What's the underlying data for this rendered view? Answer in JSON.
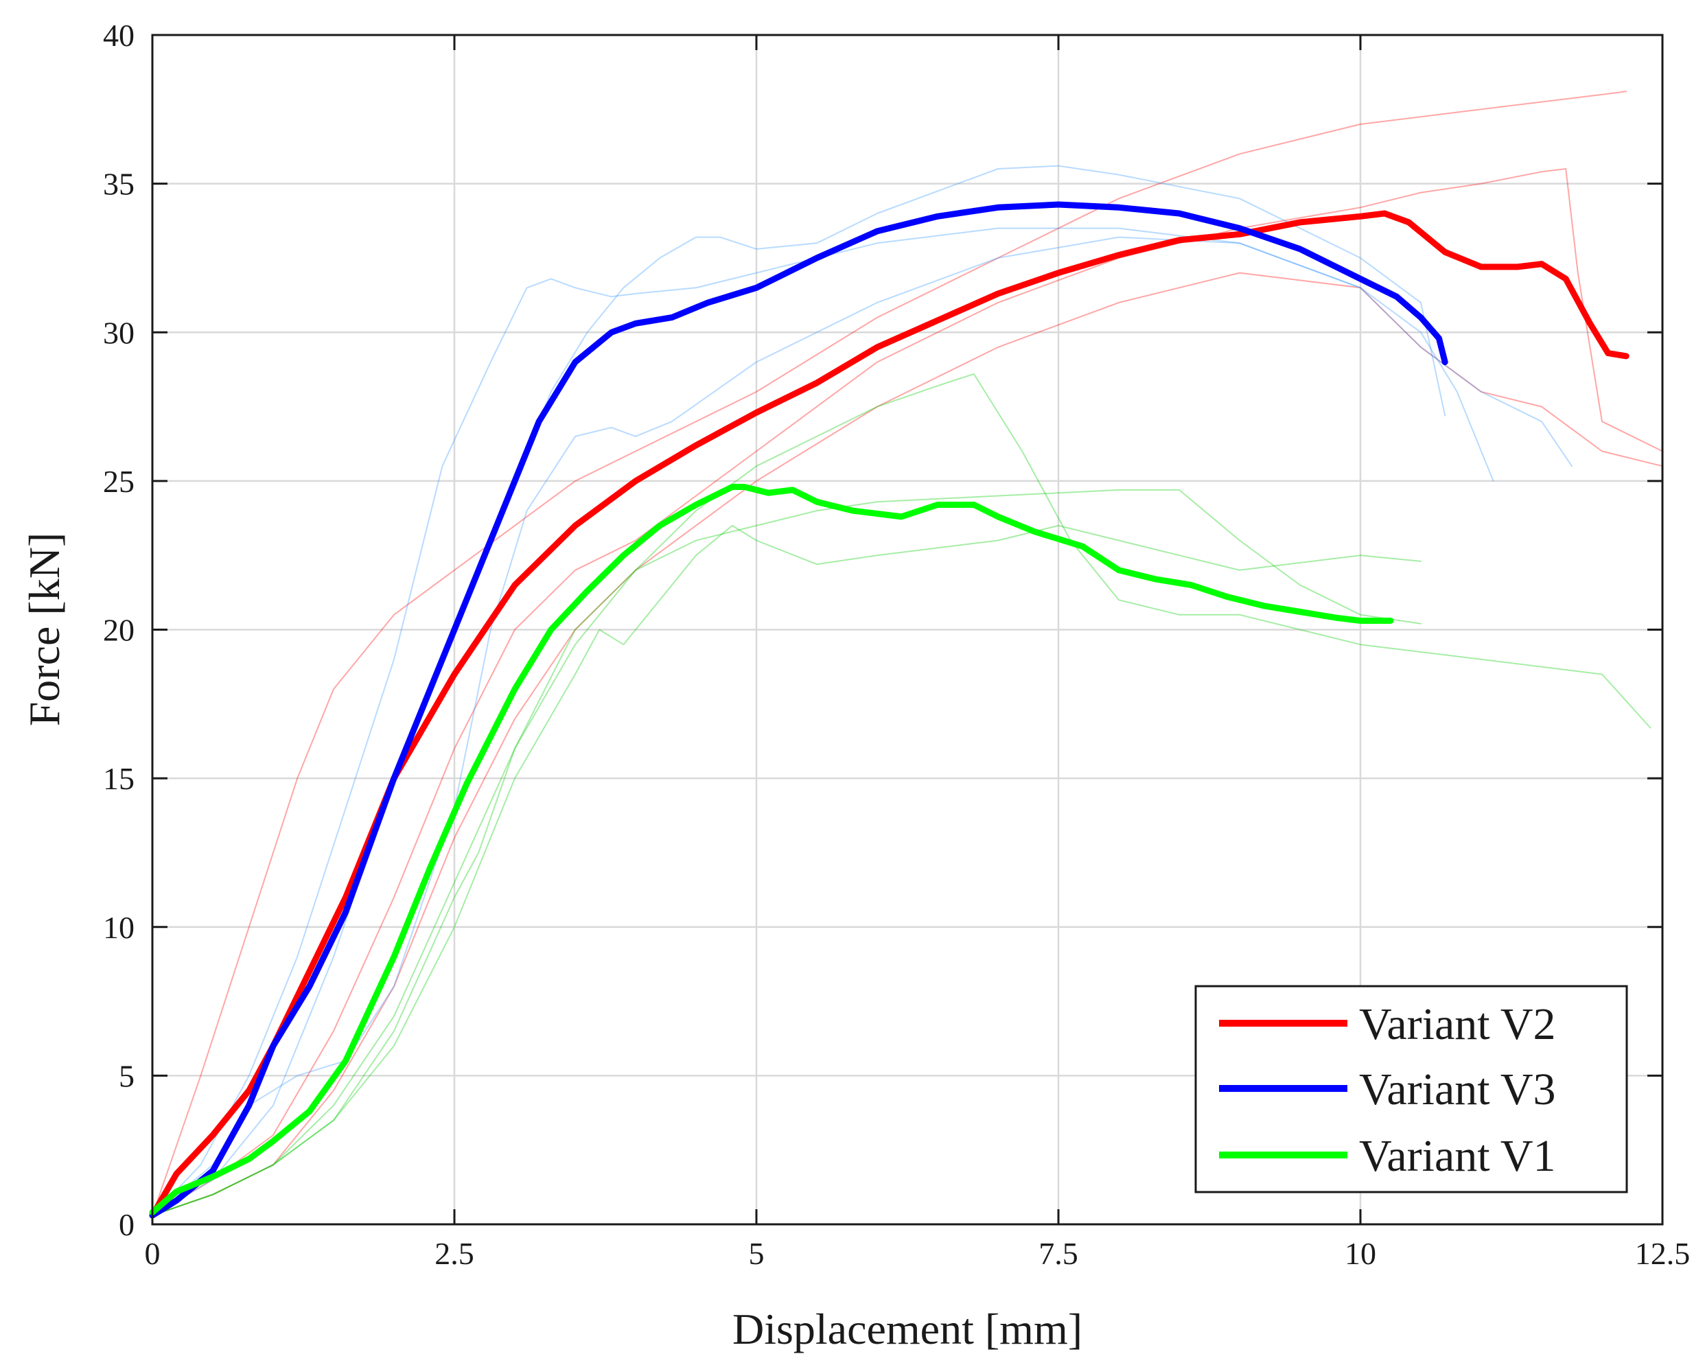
{
  "chart_data": {
    "type": "line",
    "title": "",
    "xlabel": "Displacement [mm]",
    "ylabel": "Force [kN]",
    "xlim": [
      0,
      12.5
    ],
    "ylim": [
      0,
      40
    ],
    "grid": true,
    "legend_position": "bottom-right",
    "x_ticks": [
      0,
      2.5,
      5,
      7.5,
      10,
      12.5
    ],
    "x_tick_labels": [
      "0",
      "2.5",
      "5",
      "7.5",
      "10",
      "12.5"
    ],
    "y_ticks": [
      0,
      5,
      10,
      15,
      20,
      25,
      30,
      35,
      40
    ],
    "y_tick_labels": [
      "0",
      "5",
      "10",
      "15",
      "20",
      "25",
      "30",
      "35",
      "40"
    ],
    "legend": [
      {
        "name": "Variant V2",
        "color": "#ff0000"
      },
      {
        "name": "Variant V3",
        "color": "#0000ff"
      },
      {
        "name": "Variant V1",
        "color": "#00ff00"
      }
    ],
    "series": [
      {
        "name": "Variant V2",
        "color": "#ff0000",
        "role": "mean",
        "x": [
          0,
          0.2,
          0.5,
          0.8,
          1.0,
          1.3,
          1.6,
          2.0,
          2.5,
          3.0,
          3.5,
          4.0,
          4.5,
          5.0,
          5.5,
          6.0,
          6.5,
          7.0,
          7.5,
          8.0,
          8.5,
          9.0,
          9.5,
          10.0,
          10.2,
          10.4,
          10.7,
          11.0,
          11.3,
          11.5,
          11.7,
          11.9,
          12.05,
          12.2
        ],
        "y": [
          0.3,
          1.7,
          3.0,
          4.5,
          6.0,
          8.5,
          11.0,
          15.0,
          18.5,
          21.5,
          23.5,
          25.0,
          26.2,
          27.3,
          28.3,
          29.5,
          30.4,
          31.3,
          32.0,
          32.6,
          33.1,
          33.3,
          33.7,
          33.9,
          34.0,
          33.7,
          32.7,
          32.2,
          32.2,
          32.3,
          31.8,
          30.3,
          29.3,
          29.2
        ]
      },
      {
        "name": "Variant V3",
        "color": "#0000ff",
        "role": "mean",
        "x": [
          0,
          0.2,
          0.5,
          0.8,
          1.0,
          1.3,
          1.6,
          2.0,
          2.5,
          2.9,
          3.2,
          3.5,
          3.8,
          4.0,
          4.3,
          4.6,
          5.0,
          5.5,
          6.0,
          6.5,
          7.0,
          7.5,
          8.0,
          8.5,
          9.0,
          9.5,
          10.0,
          10.3,
          10.5,
          10.65,
          10.7
        ],
        "y": [
          0.3,
          0.8,
          1.8,
          4.0,
          6.0,
          8.0,
          10.5,
          15.0,
          20.0,
          24.0,
          27.0,
          29.0,
          30.0,
          30.3,
          30.5,
          31.0,
          31.5,
          32.5,
          33.4,
          33.9,
          34.2,
          34.3,
          34.2,
          34.0,
          33.5,
          32.8,
          31.8,
          31.2,
          30.5,
          29.8,
          29.0
        ]
      },
      {
        "name": "Variant V1",
        "color": "#00ff00",
        "role": "mean",
        "x": [
          0,
          0.2,
          0.5,
          0.8,
          1.0,
          1.3,
          1.6,
          2.0,
          2.3,
          2.6,
          3.0,
          3.3,
          3.6,
          3.9,
          4.2,
          4.5,
          4.8,
          4.9,
          5.1,
          5.3,
          5.5,
          5.8,
          6.0,
          6.2,
          6.5,
          6.8,
          7.0,
          7.3,
          7.7,
          8.0,
          8.3,
          8.6,
          8.9,
          9.2,
          9.5,
          9.8,
          10.0,
          10.25
        ],
        "y": [
          0.4,
          1.1,
          1.6,
          2.2,
          2.8,
          3.8,
          5.5,
          9.0,
          12.0,
          14.8,
          18.0,
          20.0,
          21.3,
          22.5,
          23.5,
          24.2,
          24.8,
          24.8,
          24.6,
          24.7,
          24.3,
          24.0,
          23.9,
          23.8,
          24.2,
          24.2,
          23.8,
          23.3,
          22.8,
          22.0,
          21.7,
          21.5,
          21.1,
          20.8,
          20.6,
          20.4,
          20.3,
          20.3
        ]
      },
      {
        "name": "V2 specimen 1",
        "color": "#ff0000",
        "role": "specimen",
        "x": [
          0,
          0.4,
          0.8,
          1.2,
          1.5,
          2.0,
          2.5,
          3.0,
          3.5,
          4.0,
          5.0,
          6.0,
          7.0,
          8.0,
          9.0,
          10.0,
          11.0,
          12.0,
          12.2
        ],
        "y": [
          0.3,
          5.0,
          10.0,
          15.0,
          18.0,
          20.5,
          22.0,
          23.5,
          25.0,
          26.0,
          28.0,
          30.5,
          32.5,
          34.5,
          36.0,
          37.0,
          37.5,
          38.0,
          38.1
        ]
      },
      {
        "name": "V2 specimen 2",
        "color": "#ff0000",
        "role": "specimen",
        "x": [
          0,
          0.5,
          1.0,
          1.5,
          2.0,
          2.5,
          3.0,
          3.5,
          4.0,
          4.5,
          5.0,
          6.0,
          7.0,
          8.0,
          9.0,
          10.0,
          10.5,
          11.0,
          11.5,
          11.7,
          11.8,
          12.0,
          12.5
        ],
        "y": [
          0.3,
          1.5,
          3.0,
          6.5,
          11.0,
          16.0,
          20.0,
          22.0,
          23.0,
          24.5,
          26.0,
          29.0,
          31.0,
          32.5,
          33.5,
          34.2,
          34.7,
          35.0,
          35.4,
          35.5,
          32.0,
          27.0,
          26.0
        ]
      },
      {
        "name": "V2 specimen 3",
        "color": "#ff0000",
        "role": "specimen",
        "x": [
          0,
          0.5,
          1.0,
          1.5,
          2.0,
          2.5,
          3.0,
          3.5,
          4.0,
          5.0,
          6.0,
          7.0,
          8.0,
          9.0,
          10.0,
          10.5,
          11.0,
          11.5,
          12.0,
          12.5
        ],
        "y": [
          0.3,
          1.0,
          2.0,
          4.5,
          8.0,
          13.0,
          17.0,
          20.0,
          22.0,
          25.0,
          27.5,
          29.5,
          31.0,
          32.0,
          31.5,
          29.5,
          28.0,
          27.5,
          26.0,
          25.5
        ]
      },
      {
        "name": "V3 specimen 1",
        "color": "#3399ff",
        "role": "specimen",
        "x": [
          0,
          0.4,
          0.8,
          1.2,
          1.6,
          2.0,
          2.4,
          2.8,
          3.1,
          3.3,
          3.5,
          3.8,
          4.0,
          4.5,
          5.0,
          6.0,
          7.0,
          8.0,
          9.0,
          10.0,
          10.5,
          10.8,
          11.1
        ],
        "y": [
          0.3,
          2.0,
          5.0,
          9.0,
          14.0,
          19.0,
          25.5,
          29.0,
          31.5,
          31.8,
          31.5,
          31.2,
          31.3,
          31.5,
          32.0,
          33.0,
          33.5,
          33.5,
          33.0,
          31.5,
          30.0,
          28.0,
          25.0
        ]
      },
      {
        "name": "V3 specimen 2",
        "color": "#3399ff",
        "role": "specimen",
        "x": [
          0,
          0.5,
          1.0,
          1.5,
          2.0,
          2.5,
          3.0,
          3.3,
          3.6,
          3.9,
          4.2,
          4.5,
          4.7,
          5.0,
          5.5,
          6.0,
          7.0,
          7.5,
          8.0,
          9.0,
          10.0,
          10.5,
          10.7
        ],
        "y": [
          0.3,
          1.5,
          4.0,
          9.0,
          15.0,
          20.0,
          25.0,
          28.0,
          30.0,
          31.5,
          32.5,
          33.2,
          33.2,
          32.8,
          33.0,
          34.0,
          35.5,
          35.6,
          35.3,
          34.5,
          32.5,
          31.0,
          27.2
        ]
      },
      {
        "name": "V3 specimen 3",
        "color": "#3399ff",
        "role": "specimen",
        "x": [
          0,
          0.5,
          0.8,
          1.2,
          1.6,
          2.0,
          2.5,
          2.8,
          3.1,
          3.5,
          3.8,
          4.0,
          4.3,
          5.0,
          6.0,
          7.0,
          8.0,
          9.0,
          10.0,
          10.5,
          11.0,
          11.5,
          11.75
        ],
        "y": [
          0.3,
          2.0,
          4.0,
          5.0,
          5.5,
          8.0,
          14.0,
          20.0,
          24.0,
          26.5,
          26.8,
          26.5,
          27.0,
          29.0,
          31.0,
          32.5,
          33.2,
          33.0,
          31.5,
          29.5,
          28.0,
          27.0,
          25.5
        ]
      },
      {
        "name": "V1 specimen 1",
        "color": "#00cc00",
        "role": "specimen",
        "x": [
          0,
          0.5,
          1.0,
          1.5,
          2.0,
          2.5,
          3.0,
          3.5,
          4.0,
          4.5,
          5.0,
          5.5,
          6.0,
          6.5,
          6.8,
          7.2,
          7.6,
          8.0,
          8.5,
          9.0,
          10.0,
          11.0,
          12.0,
          12.4
        ],
        "y": [
          0.3,
          1.0,
          2.0,
          4.0,
          7.0,
          11.5,
          16.0,
          19.5,
          22.0,
          24.0,
          25.5,
          26.5,
          27.5,
          28.2,
          28.6,
          26.0,
          23.0,
          21.0,
          20.5,
          20.5,
          19.5,
          19.0,
          18.5,
          16.7
        ]
      },
      {
        "name": "V1 specimen 2",
        "color": "#00cc00",
        "role": "specimen",
        "x": [
          0,
          0.5,
          1.0,
          1.5,
          2.0,
          2.5,
          3.0,
          3.5,
          3.7,
          3.9,
          4.2,
          4.5,
          4.8,
          5.0,
          5.5,
          6.0,
          7.0,
          7.5,
          8.0,
          8.5,
          9.0,
          10.0,
          10.5
        ],
        "y": [
          0.3,
          1.0,
          2.0,
          3.5,
          6.0,
          10.0,
          15.0,
          18.5,
          20.0,
          19.5,
          21.0,
          22.5,
          23.5,
          23.0,
          22.2,
          22.5,
          23.0,
          23.5,
          23.0,
          22.5,
          22.0,
          22.5,
          22.3
        ]
      },
      {
        "name": "V1 specimen 3",
        "color": "#00cc00",
        "role": "specimen",
        "x": [
          0,
          0.5,
          1.0,
          1.5,
          2.0,
          2.5,
          2.7,
          3.0,
          3.5,
          4.0,
          4.5,
          5.0,
          5.5,
          6.0,
          7.0,
          7.5,
          8.0,
          8.5,
          9.0,
          9.5,
          10.0,
          10.5
        ],
        "y": [
          0.3,
          1.0,
          2.0,
          3.5,
          6.5,
          11.0,
          12.5,
          16.0,
          20.0,
          22.0,
          23.0,
          23.5,
          24.0,
          24.3,
          24.5,
          24.6,
          24.7,
          24.7,
          23.0,
          21.5,
          20.5,
          20.2
        ]
      }
    ]
  }
}
